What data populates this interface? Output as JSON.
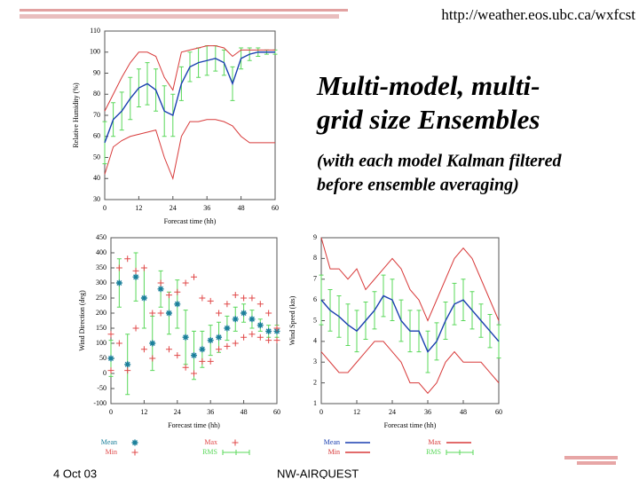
{
  "url": "http://weather.eos.ubc.ca/wxfcst",
  "title": [
    "Multi-model, multi-",
    "grid size Ensembles"
  ],
  "subtitle": [
    "(with each model Kalman filtered",
    "before ensemble averaging)"
  ],
  "footer_date": "4 Oct 03",
  "footer_org": "NW-AIRQUEST",
  "chart_data": [
    {
      "type": "line",
      "x_label": "Forecast time (hh)",
      "y_label": "Relative Humidity (%)",
      "legend": false,
      "grid": false,
      "x": [
        0,
        3,
        6,
        9,
        12,
        15,
        18,
        21,
        24,
        27,
        30,
        33,
        36,
        39,
        42,
        45,
        48,
        51,
        54,
        57,
        60
      ],
      "xlim": [
        0,
        60
      ],
      "xticks": [
        0,
        12,
        24,
        36,
        48,
        60
      ],
      "ylim": [
        30,
        110
      ],
      "yticks": [
        30,
        40,
        50,
        60,
        70,
        80,
        90,
        100,
        110
      ],
      "series": [
        {
          "name": "Mean",
          "color": "#1a3fb0",
          "style": "line",
          "values": [
            57,
            68,
            72,
            78,
            83,
            85,
            82,
            72,
            70,
            85,
            93,
            95,
            96,
            97,
            95,
            85,
            97,
            99,
            100,
            100,
            100
          ]
        },
        {
          "name": "Max",
          "color": "#d83a3a",
          "style": "line",
          "values": [
            72,
            80,
            88,
            95,
            100,
            100,
            98,
            88,
            82,
            100,
            101,
            102,
            103,
            103,
            102,
            98,
            101,
            101,
            101,
            101,
            101
          ]
        },
        {
          "name": "Min",
          "color": "#d83a3a",
          "style": "line",
          "values": [
            42,
            55,
            58,
            60,
            61,
            62,
            63,
            50,
            40,
            60,
            67,
            67,
            68,
            68,
            67,
            65,
            60,
            57,
            57,
            57,
            57
          ]
        },
        {
          "name": "RMS",
          "color": "#5ad85a",
          "style": "errorbar",
          "values": [
            10,
            8,
            9,
            10,
            9,
            10,
            10,
            12,
            10,
            8,
            7,
            7,
            7,
            6,
            6,
            8,
            5,
            3,
            2,
            1,
            1
          ]
        }
      ]
    },
    {
      "type": "scatter",
      "x_label": "Forecast time (hh)",
      "y_label": "Wind Direction (deg)",
      "legend": true,
      "grid": false,
      "x": [
        0,
        3,
        6,
        9,
        12,
        15,
        18,
        21,
        24,
        27,
        30,
        33,
        36,
        39,
        42,
        45,
        48,
        51,
        54,
        57,
        60
      ],
      "xlim": [
        0,
        60
      ],
      "xticks": [
        0,
        12,
        24,
        36,
        48,
        60
      ],
      "ylim": [
        -100,
        450
      ],
      "yticks": [
        -100,
        -50,
        0,
        50,
        100,
        150,
        200,
        250,
        300,
        350,
        400,
        450
      ],
      "series": [
        {
          "name": "Mean",
          "color": "#1a7f9a",
          "style": "star",
          "values": [
            50,
            300,
            30,
            320,
            250,
            100,
            280,
            200,
            230,
            120,
            60,
            80,
            110,
            120,
            150,
            180,
            200,
            180,
            160,
            140,
            140
          ]
        },
        {
          "name": "Max",
          "color": "#e04848",
          "style": "plus",
          "values": [
            130,
            350,
            380,
            340,
            350,
            200,
            300,
            260,
            270,
            300,
            320,
            250,
            240,
            200,
            230,
            260,
            250,
            250,
            230,
            200,
            150
          ]
        },
        {
          "name": "Min",
          "color": "#e04848",
          "style": "plus",
          "values": [
            10,
            100,
            10,
            150,
            80,
            50,
            200,
            80,
            60,
            20,
            0,
            40,
            40,
            80,
            90,
            100,
            120,
            130,
            120,
            110,
            110
          ]
        },
        {
          "name": "RMS",
          "color": "#5ad85a",
          "style": "errorbar",
          "values": [
            60,
            80,
            100,
            80,
            100,
            90,
            60,
            70,
            80,
            90,
            80,
            60,
            50,
            50,
            40,
            40,
            30,
            30,
            20,
            20,
            20
          ]
        }
      ]
    },
    {
      "type": "line",
      "x_label": "Forecast time (hh)",
      "y_label": "Wind Speed (kts)",
      "legend": true,
      "grid": false,
      "x": [
        0,
        3,
        6,
        9,
        12,
        15,
        18,
        21,
        24,
        27,
        30,
        33,
        36,
        39,
        42,
        45,
        48,
        51,
        54,
        57,
        60
      ],
      "xlim": [
        0,
        60
      ],
      "xticks": [
        0,
        12,
        24,
        36,
        48,
        60
      ],
      "ylim": [
        1,
        9
      ],
      "yticks": [
        1,
        2,
        3,
        4,
        5,
        6,
        7,
        8,
        9
      ],
      "series": [
        {
          "name": "Mean",
          "color": "#1a3fb0",
          "style": "line",
          "values": [
            6,
            5.5,
            5.2,
            4.8,
            4.5,
            5,
            5.5,
            6.2,
            6,
            5,
            4.5,
            4.5,
            3.5,
            4,
            5,
            5.8,
            6,
            5.5,
            5,
            4.5,
            4
          ]
        },
        {
          "name": "Max",
          "color": "#d83a3a",
          "style": "line",
          "values": [
            9,
            7.5,
            7.5,
            7,
            7.5,
            6.5,
            7,
            7.5,
            8,
            7.5,
            6.5,
            6,
            5,
            6,
            7,
            8,
            8.5,
            8,
            7,
            6,
            5
          ]
        },
        {
          "name": "Min",
          "color": "#d83a3a",
          "style": "line",
          "values": [
            3.5,
            3,
            2.5,
            2.5,
            3,
            3.5,
            4,
            4,
            3.5,
            3,
            2,
            2,
            1.5,
            2,
            3,
            3.5,
            3,
            3,
            3,
            2.5,
            2
          ]
        },
        {
          "name": "RMS",
          "color": "#5ad85a",
          "style": "errorbar",
          "values": [
            1.2,
            1,
            1,
            1,
            1,
            0.9,
            0.9,
            1,
            1,
            1,
            1,
            1,
            1,
            0.9,
            0.9,
            1,
            1,
            0.9,
            0.8,
            0.8,
            0.8
          ]
        }
      ]
    }
  ]
}
